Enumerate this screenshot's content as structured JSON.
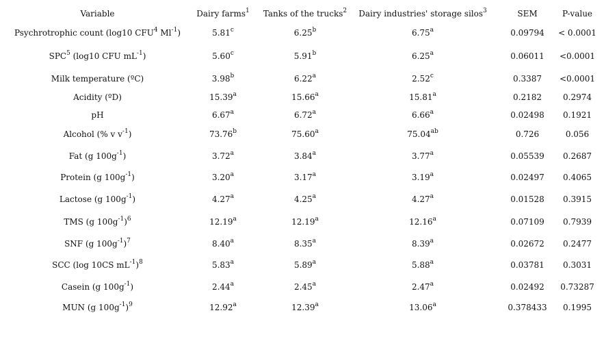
{
  "header": [
    [
      {
        "t": "Variable"
      }
    ],
    [
      {
        "t": "Dairy farms"
      },
      {
        "s": "1"
      }
    ],
    [
      {
        "t": "Tanks of the trucks"
      },
      {
        "s": "2"
      }
    ],
    [
      {
        "t": "Dairy industries' storage silos"
      },
      {
        "s": "3"
      }
    ],
    [
      {
        "t": "SEM"
      }
    ],
    [
      {
        "t": "P-value"
      }
    ]
  ],
  "rows": [
    {
      "variable": [
        {
          "t": "Psychrotrophic count (log10 CFU"
        },
        {
          "s": "4"
        },
        {
          "t": " Ml"
        },
        {
          "s": "-1"
        },
        {
          "t": ")"
        }
      ],
      "dairy_farms": {
        "v": "5.81",
        "s": "c"
      },
      "trucks": {
        "v": "6.25",
        "s": "b"
      },
      "silos": {
        "v": "6.75",
        "s": "a"
      },
      "sem": "0.09794",
      "p": "< 0.0001"
    },
    {
      "variable": [
        {
          "t": "SPC"
        },
        {
          "s": "5"
        },
        {
          "t": " (log10 CFU mL"
        },
        {
          "s": "-1"
        },
        {
          "t": ")"
        }
      ],
      "dairy_farms": {
        "v": "5.60",
        "s": "c"
      },
      "trucks": {
        "v": "5.91",
        "s": "b"
      },
      "silos": {
        "v": "6.25",
        "s": "a"
      },
      "sem": "0.06011",
      "p": "<0.0001"
    },
    {
      "variable": [
        {
          "t": "Milk temperature (ºC)"
        }
      ],
      "dairy_farms": {
        "v": "3.98",
        "s": "b"
      },
      "trucks": {
        "v": "6.22",
        "s": "a"
      },
      "silos": {
        "v": "2.52",
        "s": "c"
      },
      "sem": "0.3387",
      "p": "<0.0001"
    },
    {
      "variable": [
        {
          "t": "Acidity (ºD)"
        }
      ],
      "dairy_farms": {
        "v": "15.39",
        "s": "a"
      },
      "trucks": {
        "v": "15.66",
        "s": "a"
      },
      "silos": {
        "v": "15.81",
        "s": "a"
      },
      "sem": "0.2182",
      "p": "0.2974"
    },
    {
      "variable": [
        {
          "t": "pH"
        }
      ],
      "dairy_farms": {
        "v": "6.67",
        "s": "a"
      },
      "trucks": {
        "v": "6.72",
        "s": "a"
      },
      "silos": {
        "v": "6.66",
        "s": "a"
      },
      "sem": "0.02498",
      "p": "0.1921"
    },
    {
      "variable": [
        {
          "t": "Alcohol (% v v"
        },
        {
          "s": "-1"
        },
        {
          "t": ")"
        }
      ],
      "dairy_farms": {
        "v": "73.76",
        "s": "b"
      },
      "trucks": {
        "v": "75.60",
        "s": "a"
      },
      "silos": {
        "v": "75.04",
        "s": "ab"
      },
      "sem": "0.726",
      "p": "0.056"
    },
    {
      "variable": [
        {
          "t": "Fat (g 100g"
        },
        {
          "s": "-1"
        },
        {
          "t": ")"
        }
      ],
      "dairy_farms": {
        "v": "3.72",
        "s": "a"
      },
      "trucks": {
        "v": "3.84",
        "s": "a"
      },
      "silos": {
        "v": "3.77",
        "s": "a"
      },
      "sem": "0.05539",
      "p": "0.2687"
    },
    {
      "variable": [
        {
          "t": "Protein (g 100g"
        },
        {
          "s": "-1"
        },
        {
          "t": ")"
        }
      ],
      "dairy_farms": {
        "v": "3.20",
        "s": "a"
      },
      "trucks": {
        "v": "3.17",
        "s": "a"
      },
      "silos": {
        "v": "3.19",
        "s": "a"
      },
      "sem": "0.02497",
      "p": "0.4065"
    },
    {
      "variable": [
        {
          "t": "Lactose (g 100g"
        },
        {
          "s": "-1"
        },
        {
          "t": ")"
        }
      ],
      "dairy_farms": {
        "v": "4.27",
        "s": "a"
      },
      "trucks": {
        "v": "4.25",
        "s": "a"
      },
      "silos": {
        "v": "4.27",
        "s": "a"
      },
      "sem": "0.01528",
      "p": "0.3915"
    },
    {
      "variable": [
        {
          "t": "TMS (g 100g"
        },
        {
          "s": "-1"
        },
        {
          "t": ")"
        },
        {
          "s": "6"
        }
      ],
      "dairy_farms": {
        "v": "12.19",
        "s": "a"
      },
      "trucks": {
        "v": "12.19",
        "s": "a"
      },
      "silos": {
        "v": "12.16",
        "s": "a"
      },
      "sem": "0.07109",
      "p": "0.7939"
    },
    {
      "variable": [
        {
          "t": "SNF (g 100g"
        },
        {
          "s": "-1"
        },
        {
          "t": ")"
        },
        {
          "s": "7"
        }
      ],
      "dairy_farms": {
        "v": "8.40",
        "s": "a"
      },
      "trucks": {
        "v": "8.35",
        "s": "a"
      },
      "silos": {
        "v": "8.39",
        "s": "a"
      },
      "sem": "0.02672",
      "p": "0.2477"
    },
    {
      "variable": [
        {
          "t": "SCC (log 10CS mL"
        },
        {
          "s": "-1"
        },
        {
          "t": ")"
        },
        {
          "s": "8"
        }
      ],
      "dairy_farms": {
        "v": "5.83",
        "s": "a"
      },
      "trucks": {
        "v": "5.89",
        "s": "a"
      },
      "silos": {
        "v": "5.88",
        "s": "a"
      },
      "sem": "0.03781",
      "p": "0.3031"
    },
    {
      "variable": [
        {
          "t": "Casein (g 100g"
        },
        {
          "s": "-1"
        },
        {
          "t": ")"
        }
      ],
      "dairy_farms": {
        "v": "2.44",
        "s": "a"
      },
      "trucks": {
        "v": "2.45",
        "s": "a"
      },
      "silos": {
        "v": "2.47",
        "s": "a"
      },
      "sem": "0.02492",
      "p": "0.73287"
    },
    {
      "variable": [
        {
          "t": "MUN (g 100g"
        },
        {
          "s": "-1"
        },
        {
          "t": ")"
        },
        {
          "s": "9"
        }
      ],
      "dairy_farms": {
        "v": "12.92",
        "s": "a"
      },
      "trucks": {
        "v": "12.39",
        "s": "a"
      },
      "silos": {
        "v": "13.06",
        "s": "a"
      },
      "sem": "0.378433",
      "p": "0.1995"
    }
  ]
}
